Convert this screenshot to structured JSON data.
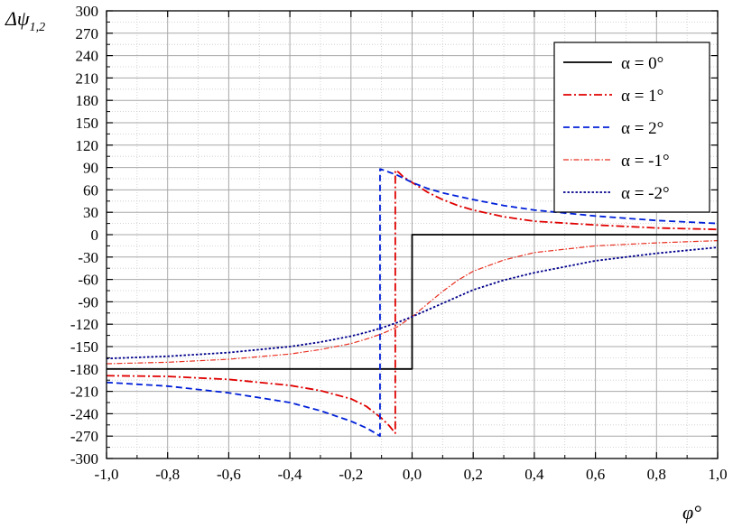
{
  "chart_data": {
    "type": "line",
    "xlabel": "φ°",
    "ylabel": "Δψ",
    "ylabel_subscript": "1,2",
    "xlim": [
      -1.0,
      1.0
    ],
    "ylim": [
      -300,
      300
    ],
    "xticks": [
      -1.0,
      -0.8,
      -0.6,
      -0.4,
      -0.2,
      0.0,
      0.2,
      0.4,
      0.6,
      0.8,
      1.0
    ],
    "xtick_labels": [
      "-1,0",
      "-0,8",
      "-0,6",
      "-0,4",
      "-0,2",
      "0,0",
      "0,2",
      "0,4",
      "0,6",
      "0,8",
      "1,0"
    ],
    "yticks": [
      -300,
      -270,
      -240,
      -210,
      -180,
      -150,
      -120,
      -90,
      -60,
      -30,
      0,
      30,
      60,
      90,
      120,
      150,
      180,
      210,
      240,
      270,
      300
    ],
    "grid": true,
    "legend_position": "top-right",
    "series": [
      {
        "name": "α = 0°",
        "color": "#000000",
        "dash": "solid",
        "x": [
          -1.0,
          0.0,
          0.0,
          1.0
        ],
        "y": [
          -180,
          -180,
          0,
          0
        ]
      },
      {
        "name": "α = 1°",
        "color": "#e00000",
        "dash": "dashdot",
        "x": [
          -1.0,
          -0.8,
          -0.6,
          -0.4,
          -0.3,
          -0.2,
          -0.15,
          -0.1,
          -0.075,
          -0.055,
          -0.055,
          -0.045,
          -0.03,
          0.0,
          0.05,
          0.1,
          0.15,
          0.2,
          0.3,
          0.4,
          0.6,
          0.8,
          1.0
        ],
        "y": [
          -189,
          -190,
          -194,
          -202,
          -209,
          -220,
          -230,
          -246,
          -256,
          -266,
          86,
          84,
          78,
          70,
          57,
          47,
          39,
          33,
          24,
          18,
          13,
          9,
          7
        ]
      },
      {
        "name": "α = 2°",
        "color": "#0020d8",
        "dash": "dashed",
        "x": [
          -1.0,
          -0.8,
          -0.6,
          -0.4,
          -0.3,
          -0.2,
          -0.15,
          -0.12,
          -0.105,
          -0.105,
          -0.09,
          -0.05,
          0.0,
          0.05,
          0.1,
          0.2,
          0.3,
          0.4,
          0.6,
          0.8,
          1.0
        ],
        "y": [
          -198,
          -203,
          -212,
          -225,
          -236,
          -250,
          -259,
          -266,
          -270,
          88,
          86,
          80,
          70,
          62,
          56,
          47,
          39,
          33,
          25,
          19,
          15
        ]
      },
      {
        "name": "α = -1°",
        "color": "#e83020",
        "dash": "dashdot-thin",
        "x": [
          -1.0,
          -0.8,
          -0.6,
          -0.4,
          -0.3,
          -0.2,
          -0.15,
          -0.1,
          -0.05,
          0.0,
          0.05,
          0.1,
          0.15,
          0.2,
          0.3,
          0.4,
          0.6,
          0.8,
          1.0
        ],
        "y": [
          -173,
          -171,
          -167,
          -160,
          -154,
          -146,
          -140,
          -133,
          -124,
          -110,
          -93,
          -76,
          -61,
          -49,
          -34,
          -24,
          -15,
          -11,
          -8
        ]
      },
      {
        "name": "α = -2°",
        "color": "#00008b",
        "dash": "dotted",
        "x": [
          -1.0,
          -0.8,
          -0.6,
          -0.4,
          -0.3,
          -0.2,
          -0.15,
          -0.1,
          -0.05,
          0.0,
          0.05,
          0.1,
          0.15,
          0.2,
          0.3,
          0.4,
          0.6,
          0.8,
          1.0
        ],
        "y": [
          -166,
          -163,
          -158,
          -150,
          -144,
          -136,
          -131,
          -125,
          -118,
          -110,
          -101,
          -92,
          -83,
          -74,
          -61,
          -51,
          -35,
          -25,
          -17
        ]
      }
    ]
  }
}
